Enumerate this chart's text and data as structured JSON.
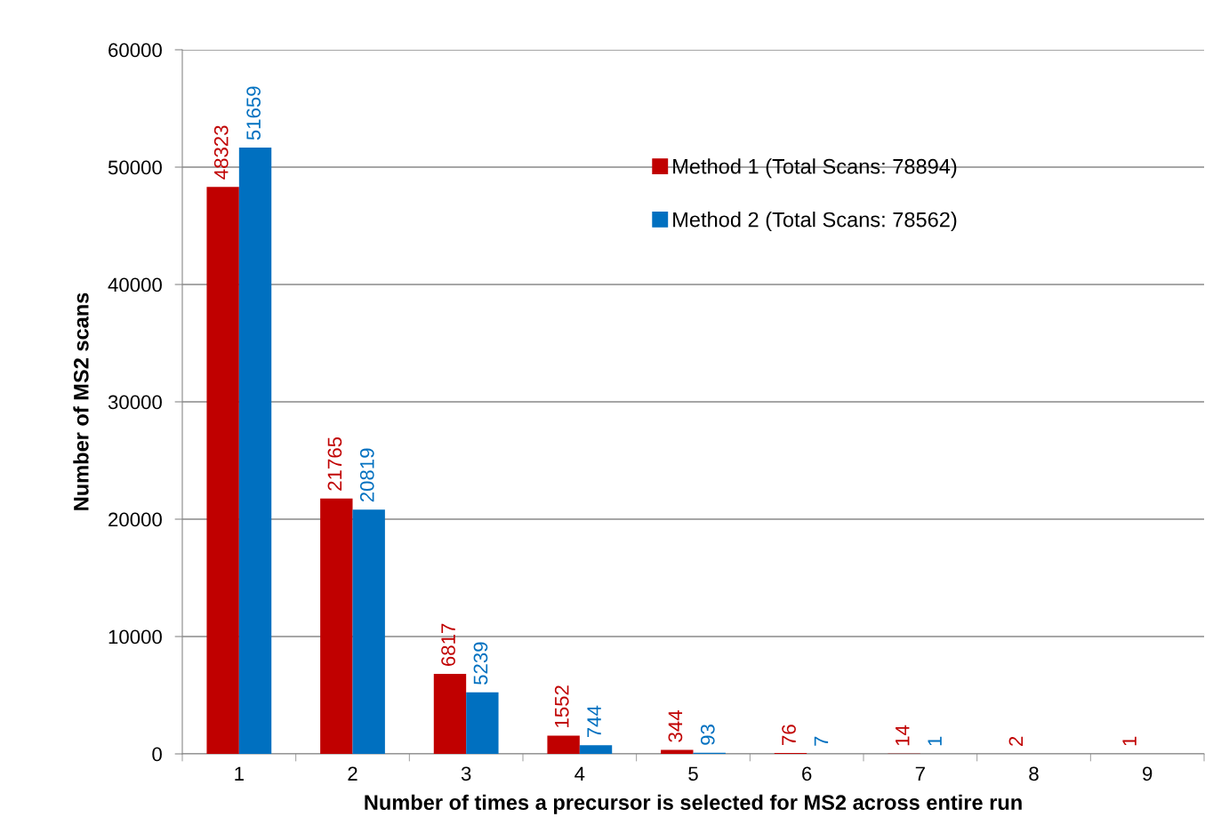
{
  "chart_data": {
    "type": "bar",
    "xlabel": "Number of times a precursor is selected for MS2 across entire run",
    "ylabel": "Number of MS2 scans",
    "categories": [
      "1",
      "2",
      "3",
      "4",
      "5",
      "6",
      "7",
      "8",
      "9"
    ],
    "series": [
      {
        "name": "Method 1 (Total Scans: 78894)",
        "color": "#c00000",
        "values": [
          48323,
          21765,
          6817,
          1552,
          344,
          76,
          14,
          2,
          1
        ]
      },
      {
        "name": "Method 2 (Total Scans: 78562)",
        "color": "#0070c0",
        "values": [
          51659,
          20819,
          5239,
          744,
          93,
          7,
          1,
          null,
          null
        ]
      }
    ],
    "ylim": [
      0,
      60000
    ],
    "yticks": [
      0,
      10000,
      20000,
      30000,
      40000,
      50000,
      60000
    ],
    "grid": "y",
    "legend": "top right",
    "data_labels": true
  }
}
